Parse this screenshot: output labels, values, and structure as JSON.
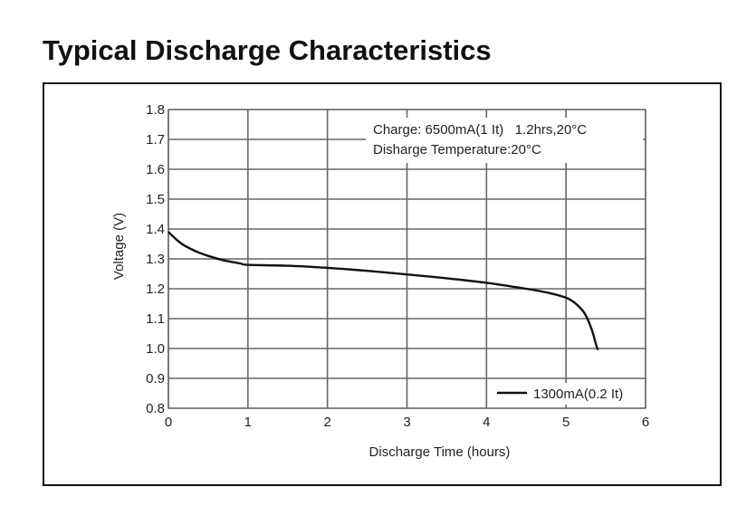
{
  "page": {
    "title": "Typical Discharge Characteristics"
  },
  "chart_data": {
    "type": "line",
    "title": "",
    "xlabel": "Discharge Time (hours)",
    "ylabel": "Voltage (V)",
    "xlim": [
      0,
      6
    ],
    "ylim": [
      0.8,
      1.8
    ],
    "x_ticks": [
      "0",
      "1",
      "2",
      "3",
      "4",
      "5",
      "6"
    ],
    "y_ticks": [
      "0.8",
      "0.9",
      "1.0",
      "1.1",
      "1.2",
      "1.3",
      "1.4",
      "1.5",
      "1.6",
      "1.7",
      "1.8"
    ],
    "grid": true,
    "annotations": [
      "Charge: 6500mA(1 It)   1.2hrs,20°C",
      "Disharge Temperature:20°C"
    ],
    "legend_position": "bottom-right",
    "series": [
      {
        "name": "1300mA(0.2 It)",
        "color": "#111111",
        "x": [
          0,
          0.1,
          0.2,
          0.35,
          0.5,
          0.7,
          0.9,
          1.0,
          1.5,
          2.0,
          2.5,
          3.0,
          3.5,
          4.0,
          4.5,
          4.8,
          5.0,
          5.1,
          5.2,
          5.25,
          5.3,
          5.34,
          5.37,
          5.4
        ],
        "y": [
          1.39,
          1.365,
          1.345,
          1.325,
          1.31,
          1.295,
          1.285,
          1.28,
          1.277,
          1.27,
          1.26,
          1.248,
          1.235,
          1.22,
          1.2,
          1.185,
          1.17,
          1.155,
          1.13,
          1.11,
          1.08,
          1.05,
          1.02,
          0.995
        ]
      }
    ]
  }
}
